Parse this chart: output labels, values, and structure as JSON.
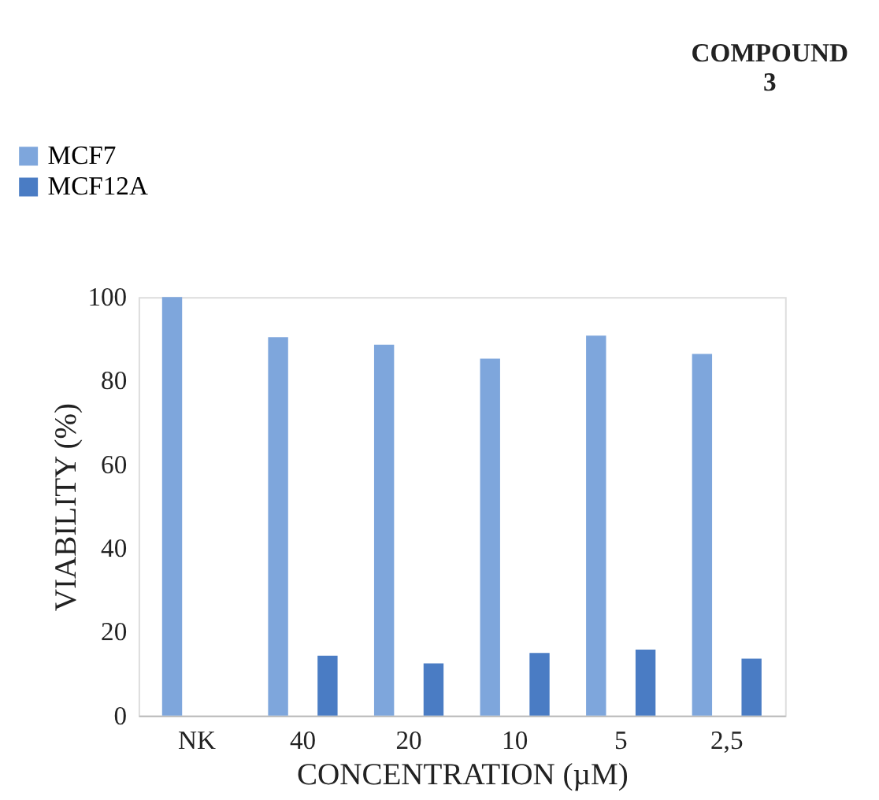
{
  "chart_data": {
    "type": "bar",
    "title": "COMPOUND 3",
    "xlabel": "CONCENTRATION (µM)",
    "ylabel": "VIABILITY (%)",
    "categories": [
      "NK",
      "40",
      "20",
      "10",
      "5",
      "2,5"
    ],
    "series": [
      {
        "name": "MCF7",
        "color": "#7ea6dc",
        "values": [
          100,
          90.4,
          88.6,
          85.3,
          90.8,
          86.4
        ]
      },
      {
        "name": "MCF12A",
        "color": "#4a7cc4",
        "values": [
          null,
          14.3,
          12.5,
          15,
          15.8,
          13.6
        ]
      }
    ],
    "ylim": [
      0,
      100
    ],
    "yticks": [
      0,
      20,
      40,
      60,
      80,
      100
    ],
    "grid": false,
    "legend": "top left"
  }
}
